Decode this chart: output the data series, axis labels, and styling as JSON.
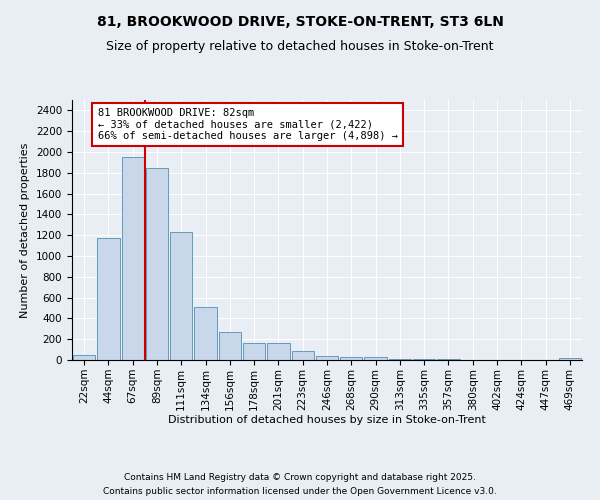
{
  "title_line1": "81, BROOKWOOD DRIVE, STOKE-ON-TRENT, ST3 6LN",
  "title_line2": "Size of property relative to detached houses in Stoke-on-Trent",
  "xlabel": "Distribution of detached houses by size in Stoke-on-Trent",
  "ylabel": "Number of detached properties",
  "bar_labels": [
    "22sqm",
    "44sqm",
    "67sqm",
    "89sqm",
    "111sqm",
    "134sqm",
    "156sqm",
    "178sqm",
    "201sqm",
    "223sqm",
    "246sqm",
    "268sqm",
    "290sqm",
    "313sqm",
    "335sqm",
    "357sqm",
    "380sqm",
    "402sqm",
    "424sqm",
    "447sqm",
    "469sqm"
  ],
  "bar_values": [
    50,
    1170,
    1950,
    1850,
    1230,
    510,
    265,
    160,
    160,
    90,
    35,
    30,
    30,
    10,
    5,
    5,
    3,
    3,
    2,
    2,
    15
  ],
  "bar_color": "#c8d8ea",
  "bar_edgecolor": "#6699bb",
  "vline_x_pos": 2.5,
  "vline_color": "#cc0000",
  "annotation_text": "81 BROOKWOOD DRIVE: 82sqm\n← 33% of detached houses are smaller (2,422)\n66% of semi-detached houses are larger (4,898) →",
  "annotation_box_color": "#ffffff",
  "annotation_box_edgecolor": "#cc0000",
  "ylim": [
    0,
    2500
  ],
  "yticks": [
    0,
    200,
    400,
    600,
    800,
    1000,
    1200,
    1400,
    1600,
    1800,
    2000,
    2200,
    2400
  ],
  "background_color": "#e8eef4",
  "plot_background": "#e8eef4",
  "footer_line1": "Contains HM Land Registry data © Crown copyright and database right 2025.",
  "footer_line2": "Contains public sector information licensed under the Open Government Licence v3.0.",
  "title_fontsize": 10,
  "subtitle_fontsize": 9,
  "axis_label_fontsize": 8,
  "tick_fontsize": 7.5,
  "annotation_fontsize": 7.5,
  "footer_fontsize": 6.5
}
